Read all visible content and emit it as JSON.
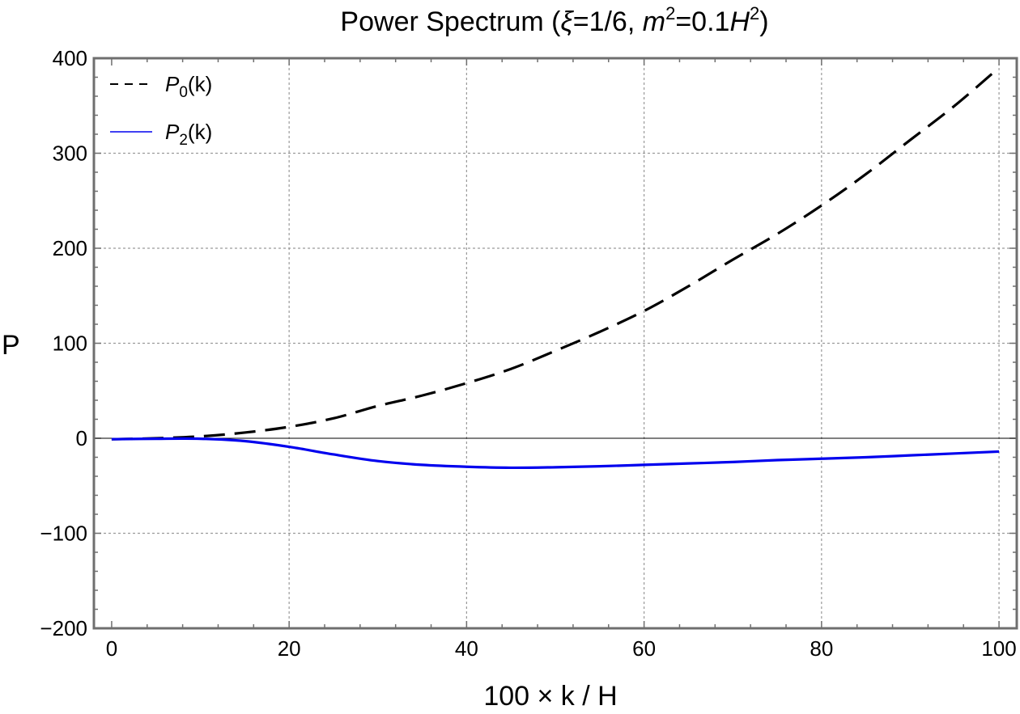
{
  "chart_data": {
    "type": "line",
    "title": "Power Spectrum (ξ=1/6, m²=0.1H²)",
    "title_parts": {
      "prefix": "Power Spectrum (",
      "xi": "ξ",
      "xi_value": "=1/6, ",
      "m": "m",
      "m_exp": "2",
      "m_value": "=0.1",
      "H": "H",
      "H_exp": "2",
      "suffix": ")"
    },
    "xlabel": "100 × k / H",
    "ylabel": "P",
    "xlim": [
      -2,
      102
    ],
    "ylim": [
      -200,
      400
    ],
    "x_ticks": [
      0,
      20,
      40,
      60,
      80,
      100
    ],
    "y_ticks": [
      -200,
      -100,
      0,
      100,
      200,
      300,
      400
    ],
    "x_tick_labels": [
      "0",
      "20",
      "40",
      "60",
      "80",
      "100"
    ],
    "y_tick_labels": [
      "−200",
      "−100",
      "0",
      "100",
      "200",
      "300",
      "400"
    ],
    "grid": true,
    "legend_position": "top-left",
    "series": [
      {
        "name": "P0(k)",
        "legend": {
          "symbol": "P",
          "subscript": "0",
          "suffix": "(k)"
        },
        "color": "#000000",
        "style": "dashed",
        "x": [
          0,
          5,
          10,
          15,
          20,
          25,
          30,
          35,
          40,
          45,
          50,
          55,
          60,
          65,
          70,
          75,
          80,
          85,
          90,
          95,
          100
        ],
        "y": [
          -1,
          0,
          2,
          6,
          12,
          21,
          34,
          45,
          58,
          73,
          92,
          112,
          134,
          160,
          188,
          215,
          245,
          278,
          314,
          350,
          390
        ]
      },
      {
        "name": "P2(k)",
        "legend": {
          "symbol": "P",
          "subscript": "2",
          "suffix": "(k)"
        },
        "color": "#0000ee",
        "style": "solid",
        "x": [
          0,
          5,
          10,
          15,
          20,
          25,
          30,
          35,
          40,
          45,
          50,
          55,
          60,
          65,
          70,
          75,
          80,
          85,
          90,
          95,
          100
        ],
        "y": [
          -1,
          -0.5,
          -0.5,
          -3,
          -9,
          -17,
          -24,
          -28,
          -30,
          -31,
          -30.5,
          -29.5,
          -28,
          -26.5,
          -25,
          -23,
          -21.5,
          -20,
          -18,
          -16,
          -14
        ]
      }
    ]
  },
  "colors": {
    "frame": "#6f6f6f",
    "grid": "#9a9a9a",
    "zero_line": "#000000"
  }
}
